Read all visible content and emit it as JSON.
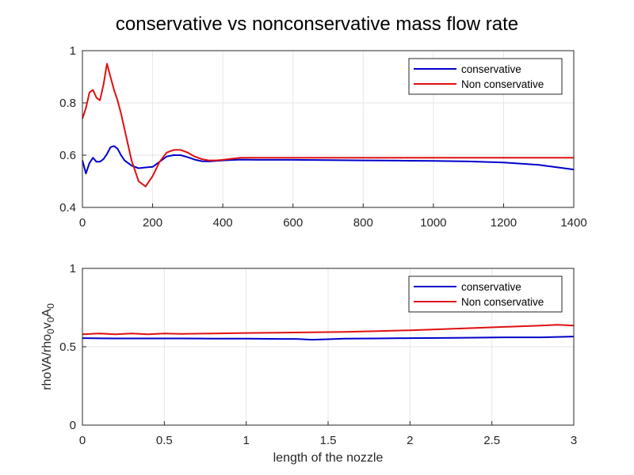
{
  "title": "conservative vs nonconservative mass flow rate",
  "colors": {
    "conservative": "#0000cc",
    "nonconservative": "#e01010",
    "grid": "#e6e6e6",
    "axis": "#262626"
  },
  "chart_data": [
    {
      "type": "line",
      "xlim": [
        0,
        1400
      ],
      "ylim": [
        0.4,
        1
      ],
      "xticks": [
        "0",
        "200",
        "400",
        "600",
        "800",
        "1000",
        "1200",
        "1400"
      ],
      "yticks": [
        "0.4",
        "0.6",
        "0.8",
        "1"
      ],
      "xlabel": "",
      "ylabel": "",
      "grid": true,
      "legend": {
        "position": "top-right",
        "entries": [
          "conservative",
          "Non conservative"
        ]
      },
      "series": [
        {
          "name": "conservative",
          "x": [
            0,
            10,
            20,
            30,
            40,
            50,
            60,
            70,
            80,
            90,
            100,
            110,
            120,
            140,
            160,
            180,
            200,
            220,
            240,
            260,
            280,
            300,
            320,
            340,
            360,
            380,
            400,
            450,
            500,
            600,
            700,
            800,
            900,
            1000,
            1100,
            1200,
            1300,
            1400
          ],
          "y": [
            0.58,
            0.53,
            0.57,
            0.59,
            0.575,
            0.575,
            0.585,
            0.605,
            0.63,
            0.635,
            0.625,
            0.6,
            0.58,
            0.56,
            0.55,
            0.553,
            0.555,
            0.575,
            0.595,
            0.6,
            0.6,
            0.592,
            0.583,
            0.577,
            0.576,
            0.578,
            0.58,
            0.583,
            0.582,
            0.582,
            0.581,
            0.58,
            0.579,
            0.578,
            0.576,
            0.572,
            0.563,
            0.545
          ]
        },
        {
          "name": "Non conservative",
          "x": [
            0,
            10,
            20,
            30,
            40,
            50,
            60,
            70,
            80,
            90,
            100,
            110,
            120,
            140,
            160,
            180,
            200,
            220,
            240,
            260,
            280,
            300,
            320,
            340,
            360,
            380,
            400,
            450,
            500,
            600,
            700,
            800,
            900,
            1000,
            1100,
            1200,
            1300,
            1400
          ],
          "y": [
            0.74,
            0.78,
            0.84,
            0.85,
            0.82,
            0.81,
            0.87,
            0.95,
            0.9,
            0.85,
            0.81,
            0.76,
            0.7,
            0.58,
            0.5,
            0.48,
            0.52,
            0.575,
            0.61,
            0.62,
            0.62,
            0.61,
            0.595,
            0.585,
            0.58,
            0.58,
            0.582,
            0.59,
            0.59,
            0.59,
            0.59,
            0.59,
            0.59,
            0.59,
            0.59,
            0.59,
            0.59,
            0.59
          ]
        }
      ]
    },
    {
      "type": "line",
      "xlim": [
        0,
        3
      ],
      "ylim": [
        0,
        1
      ],
      "xticks": [
        "0",
        "0.5",
        "1",
        "1.5",
        "2",
        "2.5",
        "3"
      ],
      "yticks": [
        "0",
        "0.5",
        "1"
      ],
      "xlabel": "length of the nozzle",
      "ylabel": "rhoVA/rho0v0A0",
      "grid": true,
      "legend": {
        "position": "top-right",
        "entries": [
          "conservative",
          "Non conservative"
        ]
      },
      "series": [
        {
          "name": "conservative",
          "x": [
            0,
            0.2,
            0.4,
            0.6,
            0.8,
            1.0,
            1.2,
            1.3,
            1.4,
            1.5,
            1.6,
            1.8,
            2.0,
            2.2,
            2.4,
            2.6,
            2.8,
            3.0
          ],
          "y": [
            0.555,
            0.553,
            0.553,
            0.553,
            0.552,
            0.552,
            0.55,
            0.55,
            0.545,
            0.548,
            0.552,
            0.553,
            0.555,
            0.556,
            0.558,
            0.56,
            0.56,
            0.565
          ]
        },
        {
          "name": "Non conservative",
          "x": [
            0,
            0.1,
            0.2,
            0.3,
            0.4,
            0.5,
            0.6,
            0.8,
            1.0,
            1.2,
            1.4,
            1.6,
            1.8,
            2.0,
            2.2,
            2.4,
            2.6,
            2.8,
            2.9,
            3.0
          ],
          "y": [
            0.58,
            0.585,
            0.58,
            0.585,
            0.58,
            0.585,
            0.582,
            0.585,
            0.588,
            0.59,
            0.592,
            0.595,
            0.6,
            0.605,
            0.612,
            0.62,
            0.628,
            0.635,
            0.64,
            0.635
          ]
        }
      ]
    }
  ]
}
